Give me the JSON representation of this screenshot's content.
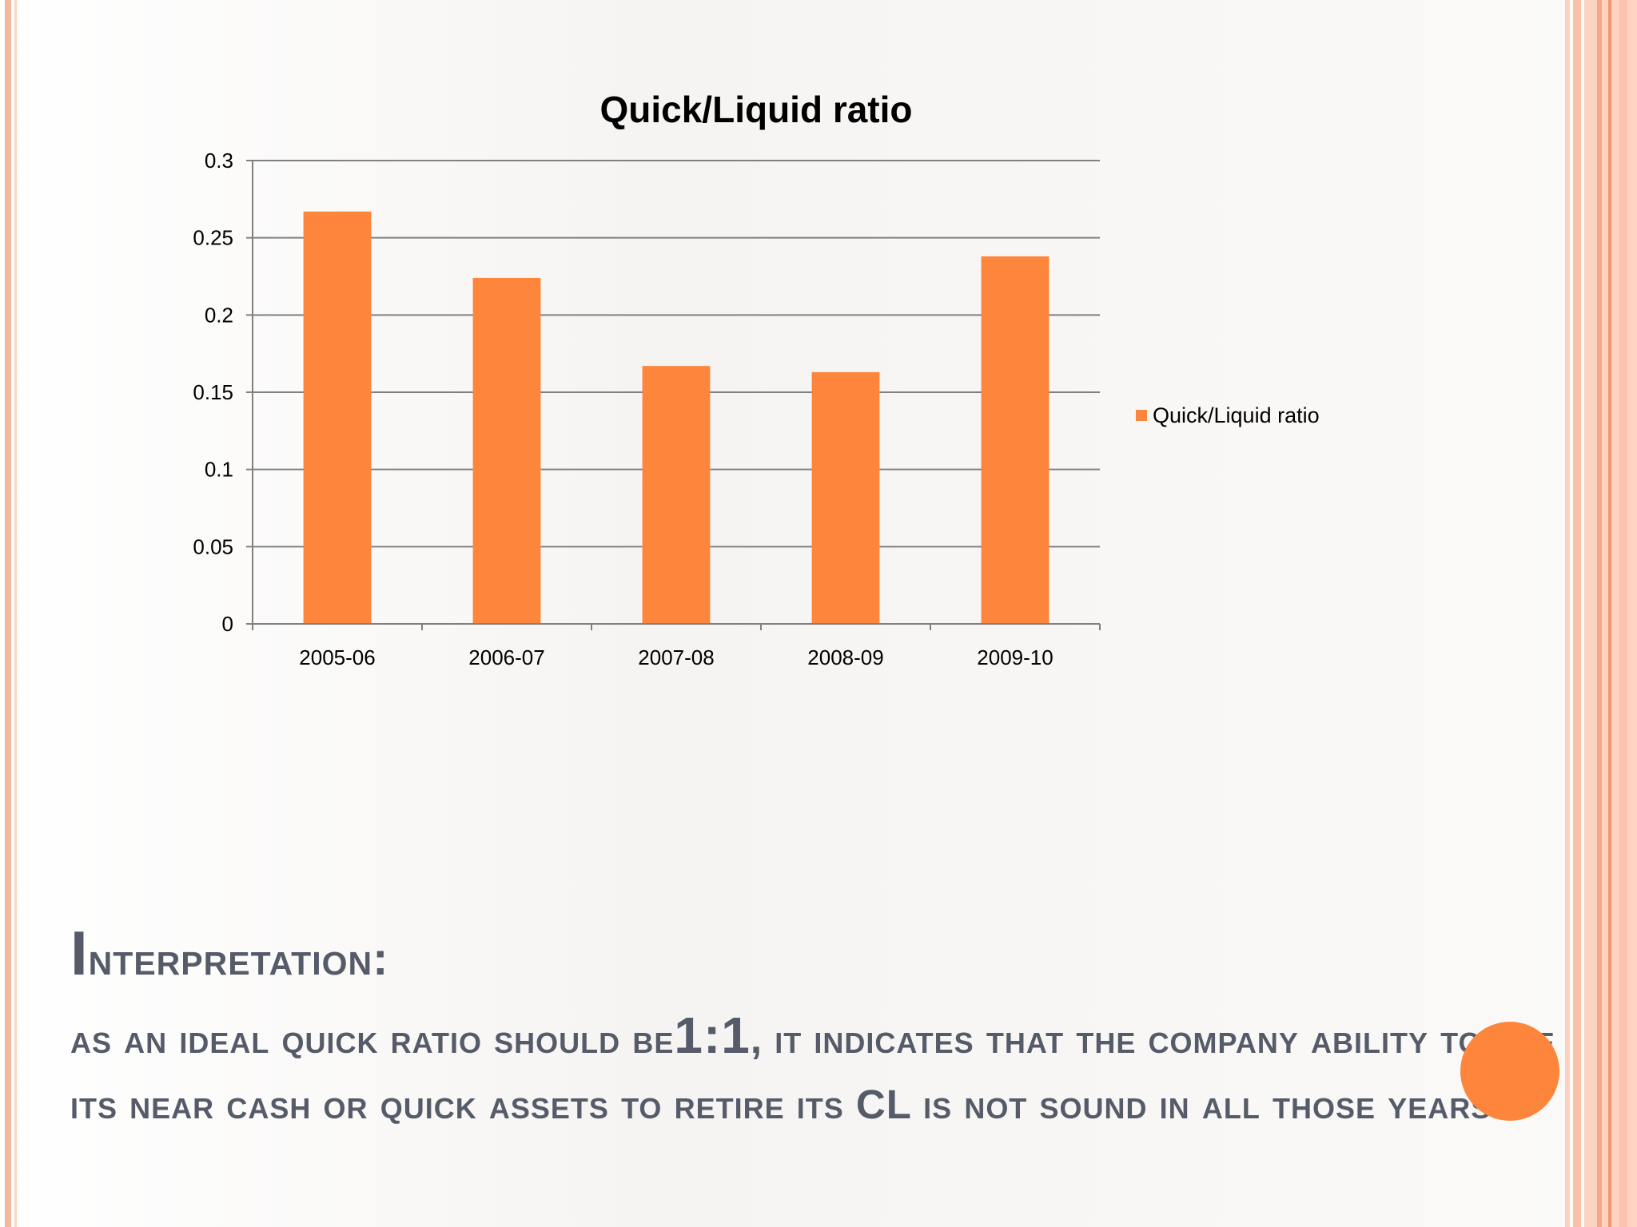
{
  "slide": {
    "heading_initial": "I",
    "heading_rest": "nterpretation:",
    "body_part1": "as an ideal quick ratio should be",
    "body_ratio": "1:1",
    "body_part2": ", it indicates that the company ability to use its near cash or quick assets to retire its CL is not sound in all those years."
  },
  "colors": {
    "bar": "#fd853c",
    "gridline": "#808080",
    "accent_circle": "#fd853c",
    "text": "#555b68"
  },
  "chart_data": {
    "type": "bar",
    "title": "Quick/Liquid ratio",
    "xlabel": "",
    "ylabel": "",
    "categories": [
      "2005-06",
      "2006-07",
      "2007-08",
      "2008-09",
      "2009-10"
    ],
    "series": [
      {
        "name": "Quick/Liquid ratio",
        "values": [
          0.267,
          0.224,
          0.167,
          0.163,
          0.238
        ]
      }
    ],
    "ylim": [
      0,
      0.3
    ],
    "yticks": [
      "0",
      "0.05",
      "0.1",
      "0.15",
      "0.2",
      "0.25",
      "0.3"
    ],
    "ytick_values": [
      0,
      0.05,
      0.1,
      0.15,
      0.2,
      0.25,
      0.3
    ],
    "grid": true,
    "legend_position": "right"
  }
}
